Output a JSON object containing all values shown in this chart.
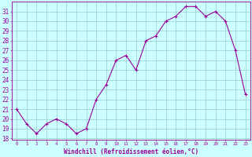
{
  "x": [
    0,
    1,
    2,
    3,
    4,
    5,
    6,
    7,
    8,
    9,
    10,
    11,
    12,
    13,
    14,
    15,
    16,
    17,
    18,
    19,
    20,
    21,
    22,
    23
  ],
  "y": [
    21,
    19.5,
    18.5,
    19.5,
    20,
    19.5,
    18.5,
    19,
    22,
    23.5,
    26,
    26.5,
    25,
    28,
    28.5,
    30,
    30.5,
    31.5,
    31.5,
    30.5,
    31,
    30,
    27,
    22.5
  ],
  "line_color": "#990099",
  "marker": "+",
  "bg_color": "#ccffff",
  "grid_color": "#99cccc",
  "xlabel": "Windchill (Refroidissement éolien,°C)",
  "ylim_min": 18,
  "ylim_max": 32,
  "xlim_min": -0.5,
  "xlim_max": 23.5,
  "yticks": [
    18,
    19,
    20,
    21,
    22,
    23,
    24,
    25,
    26,
    27,
    28,
    29,
    30,
    31
  ],
  "xticks": [
    0,
    1,
    2,
    3,
    4,
    5,
    6,
    7,
    8,
    9,
    10,
    11,
    12,
    13,
    14,
    15,
    16,
    17,
    18,
    19,
    20,
    21,
    22,
    23
  ],
  "tick_label_color": "#990099",
  "label_color": "#990099",
  "spine_color": "#990099",
  "ytick_fontsize": 5.5,
  "xtick_fontsize": 4.2,
  "xlabel_fontsize": 5.5,
  "linewidth": 0.8,
  "markersize": 3.5
}
